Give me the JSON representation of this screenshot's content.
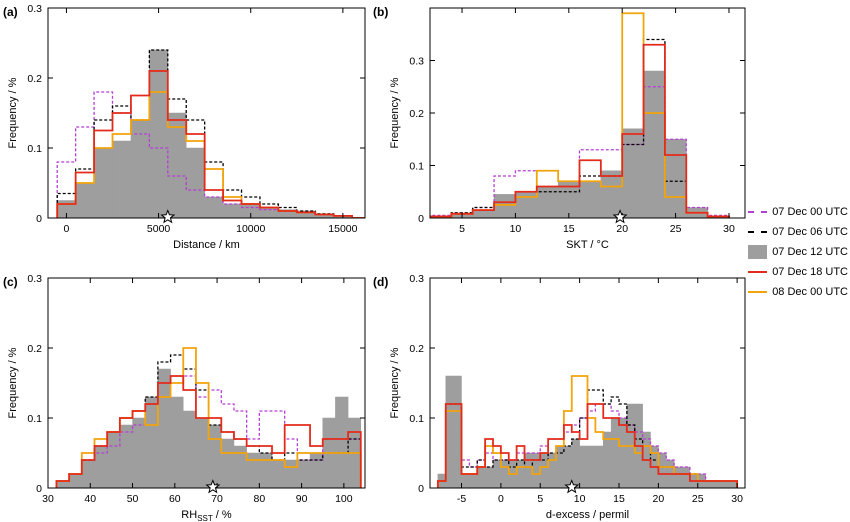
{
  "colors": {
    "s00": "#b43fd1",
    "s06": "#000000",
    "s12": "#9e9e9e",
    "s18": "#e32b1b",
    "s24": "#f2a40c"
  },
  "legend": [
    {
      "key": "s00",
      "label": "07 Dec 00 UTC",
      "style": "dashed"
    },
    {
      "key": "s06",
      "label": "07 Dec 06 UTC",
      "style": "dashed"
    },
    {
      "key": "s12",
      "label": "07 Dec 12 UTC",
      "style": "fill"
    },
    {
      "key": "s18",
      "label": "07 Dec 18 UTC",
      "style": "solid"
    },
    {
      "key": "s24",
      "label": "08 Dec 00 UTC",
      "style": "solid"
    }
  ],
  "chart_data": [
    {
      "type": "bar",
      "panel_label": "(a)",
      "xlabel": "Distance / km",
      "ylabel": "Frequency / %",
      "xlim": [
        -1000,
        16200
      ],
      "ylim": [
        0,
        0.3
      ],
      "xticks": [
        0,
        5000,
        10000,
        15000
      ],
      "yticks": [
        0,
        0.1,
        0.2,
        0.3
      ],
      "ytick_labels": [
        "0",
        "0.1",
        "0.2",
        "0.3"
      ],
      "star_x": 5500,
      "bin_edges": [
        -500,
        500,
        1500,
        2500,
        3500,
        4500,
        5500,
        6500,
        7500,
        8500,
        9500,
        10500,
        11500,
        12500,
        13500,
        14500,
        15500,
        16500
      ],
      "series": [
        {
          "key": "s00",
          "values": [
            0.08,
            0.13,
            0.18,
            0.15,
            0.12,
            0.1,
            0.06,
            0.04,
            0.03,
            0.02,
            0.015,
            0.012,
            0.01,
            0.008,
            0.005,
            0.003,
            0
          ]
        },
        {
          "key": "s06",
          "values": [
            0.035,
            0.07,
            0.14,
            0.16,
            0.14,
            0.24,
            0.17,
            0.14,
            0.08,
            0.04,
            0.03,
            0.02,
            0.015,
            0.01,
            0.006,
            0.003,
            0
          ]
        },
        {
          "key": "s12",
          "values": [
            0.025,
            0.05,
            0.1,
            0.11,
            0.14,
            0.24,
            0.15,
            0.1,
            0.03,
            0.02,
            0.02,
            0.015,
            0.012,
            0.01,
            0.005,
            0.003,
            0
          ]
        },
        {
          "key": "s18",
          "values": [
            0.02,
            0.065,
            0.125,
            0.15,
            0.175,
            0.21,
            0.14,
            0.12,
            0.04,
            0.025,
            0.02,
            0.015,
            0.01,
            0.008,
            0.005,
            0.003,
            0
          ]
        },
        {
          "key": "s24",
          "values": [
            0.02,
            0.05,
            0.1,
            0.12,
            0.14,
            0.18,
            0.13,
            0.11,
            0.07,
            0.03,
            0.02,
            0.015,
            0.01,
            0.008,
            0.005,
            0.003,
            0
          ]
        }
      ]
    },
    {
      "type": "bar",
      "panel_label": "(b)",
      "xlabel": "SKT / °C",
      "ylabel": "Frequency / %",
      "xlim": [
        2,
        31.5
      ],
      "ylim": [
        0,
        0.4
      ],
      "xticks": [
        5,
        10,
        15,
        20,
        25,
        30
      ],
      "yticks": [
        0,
        0.1,
        0.2,
        0.3
      ],
      "ytick_labels": [
        "0",
        "0.1",
        "0.2",
        "0.3"
      ],
      "star_x": 19.8,
      "bin_edges": [
        2,
        4,
        6,
        8,
        10,
        12,
        14,
        16,
        18,
        20,
        22,
        24,
        26,
        28,
        30
      ],
      "series": [
        {
          "key": "s00",
          "values": [
            0.005,
            0.01,
            0.02,
            0.08,
            0.09,
            0.09,
            0.07,
            0.13,
            0.13,
            0.14,
            0.25,
            0.15,
            0.02,
            0.005
          ]
        },
        {
          "key": "s06",
          "values": [
            0.003,
            0.01,
            0.02,
            0.03,
            0.05,
            0.05,
            0.05,
            0.08,
            0.08,
            0.14,
            0.34,
            0.07,
            0.01,
            0.003
          ]
        },
        {
          "key": "s12",
          "values": [
            0.003,
            0.008,
            0.015,
            0.045,
            0.05,
            0.06,
            0.07,
            0.07,
            0.09,
            0.17,
            0.28,
            0.15,
            0.02,
            0.003
          ]
        },
        {
          "key": "s18",
          "values": [
            0.003,
            0.008,
            0.015,
            0.03,
            0.05,
            0.06,
            0.06,
            0.11,
            0.08,
            0.16,
            0.33,
            0.12,
            0.01,
            0.003
          ]
        },
        {
          "key": "s24",
          "values": [
            0.003,
            0.008,
            0.015,
            0.025,
            0.04,
            0.09,
            0.07,
            0.07,
            0.06,
            0.39,
            0.2,
            0.04,
            0.01,
            0.003
          ]
        }
      ]
    },
    {
      "type": "bar",
      "panel_label": "(c)",
      "xlabel": "RH",
      "xlabel_sub": "SST",
      "xlabel_after": " / %",
      "ylabel": "Frequency / %",
      "xlim": [
        30,
        105
      ],
      "ylim": [
        0,
        0.3
      ],
      "xticks": [
        30,
        40,
        50,
        60,
        70,
        80,
        90,
        100
      ],
      "yticks": [
        0,
        0.1,
        0.2,
        0.3
      ],
      "ytick_labels": [
        "0",
        "0.1",
        "0.2",
        "0.3"
      ],
      "star_x": 69,
      "bin_edges": [
        32,
        35,
        38,
        41,
        44,
        47,
        50,
        53,
        56,
        59,
        62,
        65,
        68,
        71,
        74,
        77,
        80,
        83,
        86,
        89,
        92,
        95,
        98,
        101,
        104
      ],
      "series": [
        {
          "key": "s00",
          "values": [
            0.01,
            0.02,
            0.04,
            0.05,
            0.06,
            0.08,
            0.09,
            0.12,
            0.15,
            0.16,
            0.16,
            0.13,
            0.14,
            0.12,
            0.11,
            0.07,
            0.11,
            0.11,
            0.07,
            0.04,
            0.04,
            0.07,
            0.07,
            0.07
          ]
        },
        {
          "key": "s06",
          "values": [
            0.01,
            0.02,
            0.04,
            0.06,
            0.08,
            0.1,
            0.11,
            0.13,
            0.18,
            0.19,
            0.17,
            0.14,
            0.09,
            0.08,
            0.07,
            0.06,
            0.05,
            0.04,
            0.05,
            0.04,
            0.04,
            0.05,
            0.05,
            0.07
          ]
        },
        {
          "key": "s12",
          "values": [
            0.01,
            0.02,
            0.04,
            0.06,
            0.08,
            0.09,
            0.1,
            0.13,
            0.17,
            0.13,
            0.11,
            0.1,
            0.09,
            0.07,
            0.06,
            0.05,
            0.05,
            0.04,
            0.04,
            0.04,
            0.05,
            0.1,
            0.13,
            0.1
          ]
        },
        {
          "key": "s18",
          "values": [
            0.01,
            0.02,
            0.04,
            0.06,
            0.08,
            0.1,
            0.11,
            0.12,
            0.15,
            0.16,
            0.14,
            0.1,
            0.1,
            0.08,
            0.07,
            0.06,
            0.06,
            0.05,
            0.09,
            0.09,
            0.06,
            0.07,
            0.07,
            0.08
          ]
        },
        {
          "key": "s24",
          "values": [
            0.01,
            0.02,
            0.05,
            0.07,
            0.08,
            0.1,
            0.11,
            0.09,
            0.13,
            0.15,
            0.2,
            0.15,
            0.07,
            0.05,
            0.05,
            0.04,
            0.04,
            0.04,
            0.03,
            0.05,
            0.05,
            0.05,
            0.05,
            0.05
          ]
        }
      ]
    },
    {
      "type": "bar",
      "panel_label": "(d)",
      "xlabel": "d-excess / permil",
      "ylabel": "Frequency / %",
      "xlim": [
        -9,
        31
      ],
      "ylim": [
        0,
        0.3
      ],
      "xticks": [
        -5,
        0,
        5,
        10,
        15,
        20,
        25,
        30
      ],
      "yticks": [
        0,
        0.1,
        0.2,
        0.3
      ],
      "ytick_labels": [
        "0",
        "0.1",
        "0.2",
        "0.3"
      ],
      "star_x": 9,
      "bin_edges": [
        -8,
        -7,
        -6,
        -5,
        -4,
        -3,
        -2,
        -1,
        0,
        1,
        2,
        3,
        4,
        5,
        6,
        7,
        8,
        9,
        10,
        11,
        12,
        13,
        14,
        15,
        16,
        17,
        18,
        19,
        20,
        21,
        22,
        23,
        24,
        25,
        26,
        27,
        28,
        29,
        30
      ],
      "series": [
        {
          "key": "s00",
          "values": [
            0.01,
            0.11,
            0.11,
            0.04,
            0.03,
            0.04,
            0.05,
            0.04,
            0.04,
            0.04,
            0.05,
            0.05,
            0.05,
            0.06,
            0.07,
            0.07,
            0.08,
            0.09,
            0.1,
            0.11,
            0.12,
            0.12,
            0.11,
            0.1,
            0.09,
            0.08,
            0.07,
            0.06,
            0.05,
            0.04,
            0.03,
            0.03,
            0.02,
            0.02,
            0.01,
            0.01,
            0.01,
            0.01
          ]
        },
        {
          "key": "s06",
          "values": [
            0.01,
            0.12,
            0.12,
            0.03,
            0.03,
            0.04,
            0.03,
            0.04,
            0.04,
            0.03,
            0.04,
            0.03,
            0.04,
            0.04,
            0.05,
            0.05,
            0.06,
            0.07,
            0.1,
            0.14,
            0.14,
            0.12,
            0.13,
            0.12,
            0.09,
            0.07,
            0.06,
            0.04,
            0.03,
            0.03,
            0.02,
            0.02,
            0.02,
            0.01,
            0.01,
            0.01,
            0.01,
            0.01
          ]
        },
        {
          "key": "s12",
          "values": [
            0.02,
            0.16,
            0.16,
            0.02,
            0.02,
            0.03,
            0.03,
            0.04,
            0.04,
            0.04,
            0.04,
            0.05,
            0.05,
            0.05,
            0.05,
            0.06,
            0.06,
            0.07,
            0.06,
            0.06,
            0.06,
            0.08,
            0.1,
            0.1,
            0.12,
            0.12,
            0.08,
            0.06,
            0.05,
            0.04,
            0.03,
            0.03,
            0.02,
            0.02,
            0.01,
            0.01,
            0.01,
            0.01
          ]
        },
        {
          "key": "s18",
          "values": [
            0.01,
            0.12,
            0.12,
            0.02,
            0.02,
            0.03,
            0.07,
            0.06,
            0.05,
            0.04,
            0.06,
            0.04,
            0.04,
            0.05,
            0.07,
            0.07,
            0.09,
            0.08,
            0.07,
            0.12,
            0.12,
            0.1,
            0.1,
            0.09,
            0.08,
            0.06,
            0.04,
            0.03,
            0.02,
            0.02,
            0.02,
            0.02,
            0.01,
            0.01,
            0.01,
            0.01,
            0.01,
            0.01
          ]
        },
        {
          "key": "s24",
          "values": [
            0.01,
            0.11,
            0.11,
            0.02,
            0.02,
            0.03,
            0.06,
            0.05,
            0.03,
            0.02,
            0.03,
            0.03,
            0.02,
            0.03,
            0.04,
            0.06,
            0.11,
            0.16,
            0.16,
            0.1,
            0.08,
            0.07,
            0.07,
            0.06,
            0.06,
            0.05,
            0.06,
            0.05,
            0.03,
            0.03,
            0.02,
            0.02,
            0.02,
            0.01,
            0.01,
            0.01,
            0.01,
            0.01
          ]
        }
      ]
    }
  ]
}
